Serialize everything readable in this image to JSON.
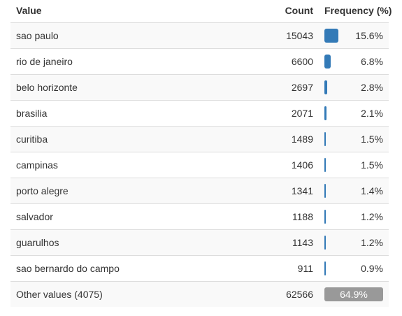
{
  "header": {
    "value": "Value",
    "count": "Count",
    "frequency": "Frequency (%)"
  },
  "rows": [
    {
      "value": "sao paulo",
      "count": "15043",
      "pct": "15.6%",
      "fraction": 0.156
    },
    {
      "value": "rio de janeiro",
      "count": "6600",
      "pct": "6.8%",
      "fraction": 0.068
    },
    {
      "value": "belo horizonte",
      "count": "2697",
      "pct": "2.8%",
      "fraction": 0.028
    },
    {
      "value": "brasilia",
      "count": "2071",
      "pct": "2.1%",
      "fraction": 0.021
    },
    {
      "value": "curitiba",
      "count": "1489",
      "pct": "1.5%",
      "fraction": 0.015
    },
    {
      "value": "campinas",
      "count": "1406",
      "pct": "1.5%",
      "fraction": 0.015
    },
    {
      "value": "porto alegre",
      "count": "1341",
      "pct": "1.4%",
      "fraction": 0.014
    },
    {
      "value": "salvador",
      "count": "1188",
      "pct": "1.2%",
      "fraction": 0.012
    },
    {
      "value": "guarulhos",
      "count": "1143",
      "pct": "1.2%",
      "fraction": 0.012
    },
    {
      "value": "sao bernardo do campo",
      "count": "911",
      "pct": "0.9%",
      "fraction": 0.009
    }
  ],
  "other": {
    "value": "Other values (4075)",
    "count": "62566",
    "pct": "64.9%"
  },
  "colors": {
    "bar": "#337ab7",
    "other_bar": "#999999"
  }
}
